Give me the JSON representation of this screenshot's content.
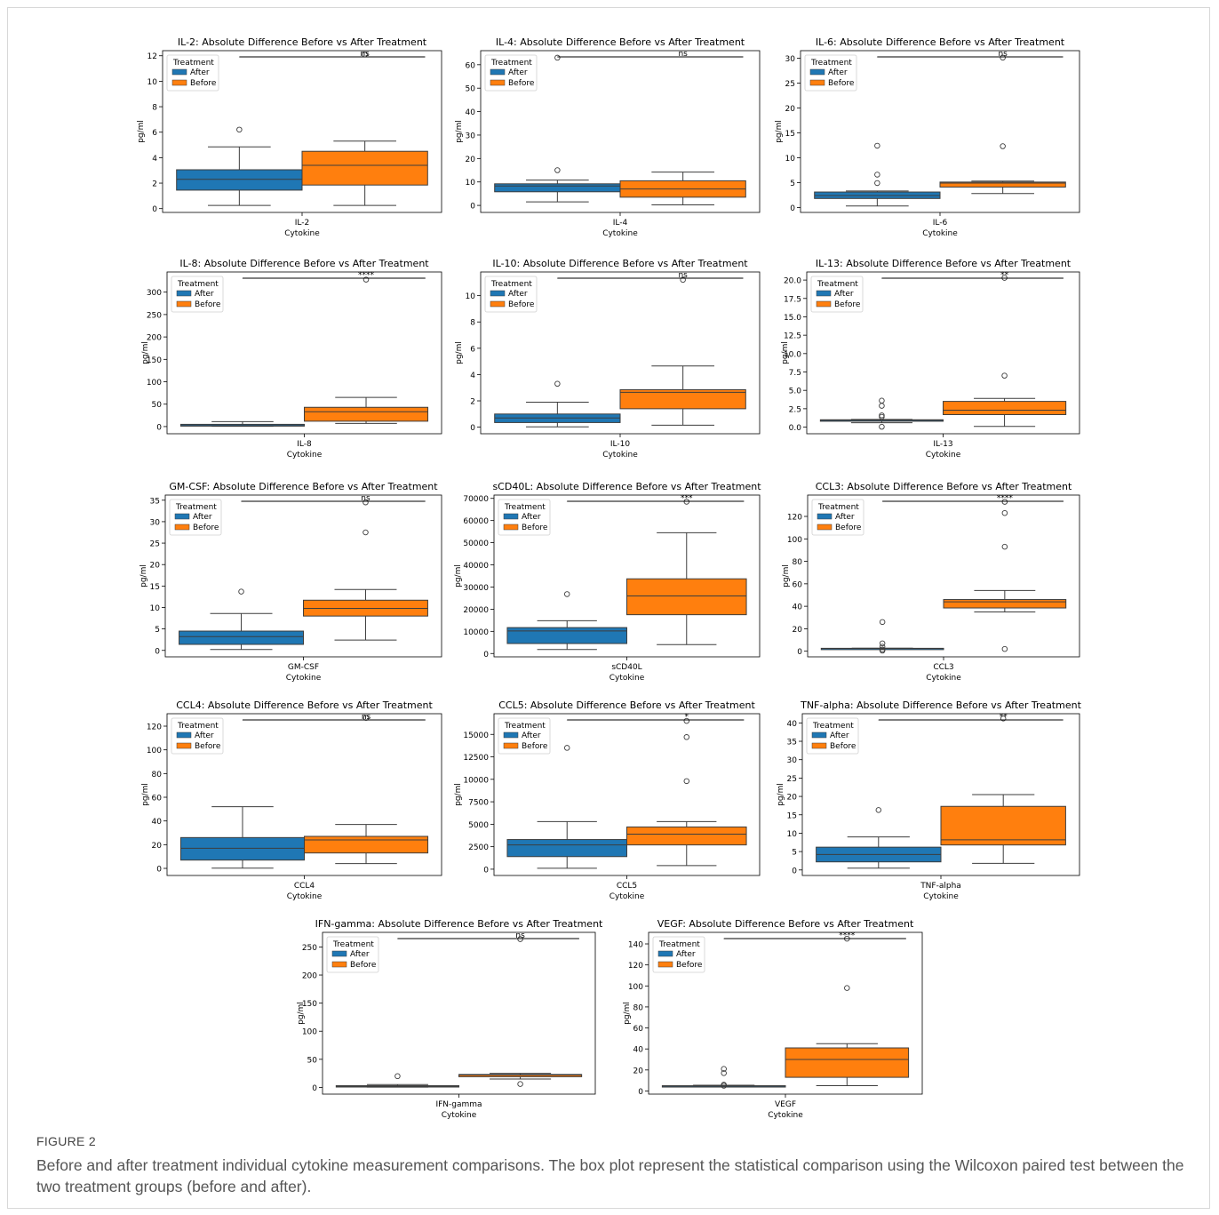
{
  "colors": {
    "after": "#1f77b4",
    "before": "#ff7f0e",
    "axis": "#000000",
    "bg": "#ffffff"
  },
  "caption": {
    "label": "FIGURE 2",
    "text": "Before and after treatment individual cytokine measurement comparisons. The box plot represent the statistical comparison using the Wilcoxon paired test between the two treatment groups (before and after)."
  },
  "chart_data": [
    {
      "type": "box",
      "title": "IL-2: Absolute Difference Before vs After Treatment",
      "category": "IL-2",
      "xlabel": "Cytokine",
      "ylabel": "pg/ml",
      "ylim": [
        -0.3,
        12.4
      ],
      "yticks": [
        0,
        2,
        4,
        6,
        8,
        10,
        12
      ],
      "legend_title": "Treatment",
      "legend": [
        "After",
        "Before"
      ],
      "significance": "ns",
      "series": [
        {
          "name": "After",
          "whislo": 0.25,
          "q1": 1.45,
          "med": 2.3,
          "q3": 3.05,
          "whishi": 4.85,
          "fliers": [
            6.2
          ]
        },
        {
          "name": "Before",
          "whislo": 0.25,
          "q1": 1.85,
          "med": 3.4,
          "q3": 4.5,
          "whishi": 5.3,
          "fliers": [
            12.1
          ]
        }
      ]
    },
    {
      "type": "box",
      "title": "IL-4: Absolute Difference Before vs After Treatment",
      "category": "IL-4",
      "xlabel": "Cytokine",
      "ylabel": "pg/ml",
      "ylim": [
        -3,
        66
      ],
      "yticks": [
        0,
        10,
        20,
        30,
        40,
        50,
        60
      ],
      "legend_title": "Treatment",
      "legend": [
        "After",
        "Before"
      ],
      "significance": "ns",
      "series": [
        {
          "name": "After",
          "whislo": 1.5,
          "q1": 5.8,
          "med": 8.3,
          "q3": 9.2,
          "whishi": 10.8,
          "fliers": [
            15,
            63
          ]
        },
        {
          "name": "Before",
          "whislo": 0.2,
          "q1": 3.5,
          "med": 7,
          "q3": 10.5,
          "whishi": 14.2,
          "fliers": []
        }
      ]
    },
    {
      "type": "box",
      "title": "IL-6: Absolute Difference Before vs After Treatment",
      "category": "IL-6",
      "xlabel": "Cytokine",
      "ylabel": "pg/ml",
      "ylim": [
        -1,
        31.5
      ],
      "yticks": [
        0,
        5,
        10,
        15,
        20,
        25,
        30
      ],
      "legend_title": "Treatment",
      "legend": [
        "After",
        "Before"
      ],
      "significance": "ns",
      "series": [
        {
          "name": "After",
          "whislo": 0.3,
          "q1": 1.8,
          "med": 2.4,
          "q3": 3.1,
          "whishi": 3.3,
          "fliers": [
            4.9,
            6.6,
            12.4
          ]
        },
        {
          "name": "Before",
          "whislo": 2.8,
          "q1": 4.1,
          "med": 4.9,
          "q3": 5.1,
          "whishi": 5.3,
          "fliers": [
            12.3,
            30.1
          ]
        }
      ]
    },
    {
      "type": "box",
      "title": "IL-8: Absolute Difference Before vs After Treatment",
      "category": "IL-8",
      "xlabel": "Cytokine",
      "ylabel": "pg/ml",
      "ylim": [
        -16,
        345
      ],
      "yticks": [
        0,
        50,
        100,
        150,
        200,
        250,
        300
      ],
      "legend_title": "Treatment",
      "legend": [
        "After",
        "Before"
      ],
      "significance": "****",
      "series": [
        {
          "name": "After",
          "whislo": 0.5,
          "q1": 1,
          "med": 2,
          "q3": 5,
          "whishi": 11,
          "fliers": []
        },
        {
          "name": "Before",
          "whislo": 7,
          "q1": 12,
          "med": 33,
          "q3": 43,
          "whishi": 65,
          "fliers": [
            328
          ]
        }
      ]
    },
    {
      "type": "box",
      "title": "IL-10: Absolute Difference Before vs After Treatment",
      "category": "IL-10",
      "xlabel": "Cytokine",
      "ylabel": "pg/ml",
      "ylim": [
        -0.5,
        11.8
      ],
      "yticks": [
        0,
        2,
        4,
        6,
        8,
        10
      ],
      "legend_title": "Treatment",
      "legend": [
        "After",
        "Before"
      ],
      "significance": "ns",
      "series": [
        {
          "name": "After",
          "whislo": 0.02,
          "q1": 0.35,
          "med": 0.7,
          "q3": 1,
          "whishi": 1.9,
          "fliers": [
            3.3
          ]
        },
        {
          "name": "Before",
          "whislo": 0.15,
          "q1": 1.4,
          "med": 2.65,
          "q3": 2.85,
          "whishi": 4.65,
          "fliers": [
            11.2
          ]
        }
      ]
    },
    {
      "type": "box",
      "title": "IL-13: Absolute Difference Before vs After Treatment",
      "category": "IL-13",
      "xlabel": "Cytokine",
      "ylabel": "pg/ml",
      "ylim": [
        -0.9,
        21.1
      ],
      "yticks": [
        0.0,
        2.5,
        5.0,
        7.5,
        10.0,
        12.5,
        15.0,
        17.5,
        20.0
      ],
      "legend_title": "Treatment",
      "legend": [
        "After",
        "Before"
      ],
      "significance": "**",
      "series": [
        {
          "name": "After",
          "whislo": 0.6,
          "q1": 0.8,
          "med": 0.95,
          "q3": 1,
          "whishi": 1.05,
          "fliers": [
            0.05,
            1.4,
            1.6,
            2.9,
            3.6
          ]
        },
        {
          "name": "Before",
          "whislo": 0.1,
          "q1": 1.7,
          "med": 2.3,
          "q3": 3.5,
          "whishi": 3.9,
          "fliers": [
            7,
            20.3
          ]
        }
      ]
    },
    {
      "type": "box",
      "title": "GM-CSF: Absolute Difference Before vs After Treatment",
      "category": "GM-CSF",
      "xlabel": "Cytokine",
      "ylabel": "pg/ml",
      "ylim": [
        -1.5,
        36.2
      ],
      "yticks": [
        0,
        5,
        10,
        15,
        20,
        25,
        30,
        35
      ],
      "legend_title": "Treatment",
      "legend": [
        "After",
        "Before"
      ],
      "significance": "ns",
      "series": [
        {
          "name": "After",
          "whislo": 0.2,
          "q1": 1.4,
          "med": 3.2,
          "q3": 4.5,
          "whishi": 8.6,
          "fliers": [
            13.7
          ]
        },
        {
          "name": "Before",
          "whislo": 2.4,
          "q1": 8,
          "med": 9.8,
          "q3": 11.7,
          "whishi": 14.2,
          "fliers": [
            27.5,
            34.5
          ]
        }
      ]
    },
    {
      "type": "box",
      "title": "sCD40L: Absolute Difference Before vs After Treatment",
      "category": "sCD40L",
      "xlabel": "Cytokine",
      "ylabel": "pg/ml",
      "ylim": [
        -1500,
        71500
      ],
      "yticks": [
        0,
        10000,
        20000,
        30000,
        40000,
        50000,
        60000,
        70000
      ],
      "legend_title": "Treatment",
      "legend": [
        "After",
        "Before"
      ],
      "significance": "***",
      "series": [
        {
          "name": "After",
          "whislo": 1800,
          "q1": 4500,
          "med": 10200,
          "q3": 11700,
          "whishi": 14800,
          "fliers": [
            26800
          ]
        },
        {
          "name": "Before",
          "whislo": 4000,
          "q1": 17500,
          "med": 26000,
          "q3": 33700,
          "whishi": 54500,
          "fliers": [
            68500
          ]
        }
      ]
    },
    {
      "type": "box",
      "title": "CCL3: Absolute Difference Before vs After Treatment",
      "category": "CCL3",
      "xlabel": "Cytokine",
      "ylabel": "pg/ml",
      "ylim": [
        -5,
        139
      ],
      "yticks": [
        0,
        20,
        40,
        60,
        80,
        100,
        120
      ],
      "legend_title": "Treatment",
      "legend": [
        "After",
        "Before"
      ],
      "significance": "****",
      "series": [
        {
          "name": "After",
          "whislo": 2.5,
          "q1": 2.5,
          "med": 2.5,
          "q3": 2.6,
          "whishi": 2.7,
          "fliers": [
            0.5,
            1.5,
            4,
            7,
            26
          ]
        },
        {
          "name": "Before",
          "whislo": 35,
          "q1": 38.5,
          "med": 44,
          "q3": 46,
          "whishi": 54,
          "fliers": [
            2,
            93,
            123,
            133
          ]
        }
      ]
    },
    {
      "type": "box",
      "title": "CCL4: Absolute Difference Before vs After Treatment",
      "category": "CCL4",
      "xlabel": "Cytokine",
      "ylabel": "pg/ml",
      "ylim": [
        -6,
        130.5
      ],
      "yticks": [
        0,
        20,
        40,
        60,
        80,
        100,
        120
      ],
      "legend_title": "Treatment",
      "legend": [
        "After",
        "Before"
      ],
      "significance": "ns",
      "series": [
        {
          "name": "After",
          "whislo": 0.2,
          "q1": 7,
          "med": 17,
          "q3": 26,
          "whishi": 52,
          "fliers": []
        },
        {
          "name": "Before",
          "whislo": 4,
          "q1": 13,
          "med": 24,
          "q3": 27,
          "whishi": 37,
          "fliers": [
            127
          ]
        }
      ]
    },
    {
      "type": "box",
      "title": "CCL5: Absolute Difference Before vs After Treatment",
      "category": "CCL5",
      "xlabel": "Cytokine",
      "ylabel": "pg/ml",
      "ylim": [
        -700,
        17300
      ],
      "yticks": [
        0,
        2500,
        5000,
        7500,
        10000,
        12500,
        15000
      ],
      "legend_title": "Treatment",
      "legend": [
        "After",
        "Before"
      ],
      "significance": "*",
      "series": [
        {
          "name": "After",
          "whislo": 100,
          "q1": 1400,
          "med": 2700,
          "q3": 3300,
          "whishi": 5300,
          "fliers": [
            13500
          ]
        },
        {
          "name": "Before",
          "whislo": 400,
          "q1": 2700,
          "med": 3900,
          "q3": 4700,
          "whishi": 5300,
          "fliers": [
            9800,
            14700,
            16500
          ]
        }
      ]
    },
    {
      "type": "box",
      "title": "TNF-alpha: Absolute Difference Before vs After Treatment",
      "category": "TNF-alpha",
      "xlabel": "Cytokine",
      "ylabel": "pg/ml",
      "ylim": [
        -1.5,
        42.5
      ],
      "yticks": [
        0,
        5,
        10,
        15,
        20,
        25,
        30,
        35,
        40
      ],
      "legend_title": "Treatment",
      "legend": [
        "After",
        "Before"
      ],
      "significance": "**",
      "series": [
        {
          "name": "After",
          "whislo": 0.5,
          "q1": 2.2,
          "med": 4.2,
          "q3": 6.2,
          "whishi": 9,
          "fliers": [
            16.3
          ]
        },
        {
          "name": "Before",
          "whislo": 1.8,
          "q1": 6.8,
          "med": 8.2,
          "q3": 17.3,
          "whishi": 20.5,
          "fliers": [
            41.2
          ]
        }
      ]
    },
    {
      "type": "box",
      "title": "IFN-gamma: Absolute Difference Before vs After Treatment",
      "category": "IFN-gamma",
      "xlabel": "Cytokine",
      "ylabel": "pg/ml",
      "ylim": [
        -12,
        276
      ],
      "yticks": [
        0,
        50,
        100,
        150,
        200,
        250
      ],
      "legend_title": "Treatment",
      "legend": [
        "After",
        "Before"
      ],
      "significance": "ns",
      "series": [
        {
          "name": "After",
          "whislo": 0.5,
          "q1": 1,
          "med": 2,
          "q3": 3,
          "whishi": 5,
          "fliers": [
            20
          ]
        },
        {
          "name": "Before",
          "whislo": 15,
          "q1": 19,
          "med": 22,
          "q3": 23,
          "whishi": 25,
          "fliers": [
            6,
            264
          ]
        }
      ]
    },
    {
      "type": "box",
      "title": "VEGF: Absolute Difference Before vs After Treatment",
      "category": "VEGF",
      "xlabel": "Cytokine",
      "ylabel": "pg/ml",
      "ylim": [
        -3,
        151
      ],
      "yticks": [
        0,
        20,
        40,
        60,
        80,
        100,
        120,
        140
      ],
      "legend_title": "Treatment",
      "legend": [
        "After",
        "Before"
      ],
      "significance": "****",
      "series": [
        {
          "name": "After",
          "whislo": 4,
          "q1": 4.5,
          "med": 4.7,
          "q3": 5,
          "whishi": 5.5,
          "fliers": [
            5,
            6,
            17,
            21
          ]
        },
        {
          "name": "Before",
          "whislo": 5,
          "q1": 13,
          "med": 30,
          "q3": 41,
          "whishi": 45,
          "fliers": [
            98,
            145
          ]
        }
      ]
    }
  ]
}
